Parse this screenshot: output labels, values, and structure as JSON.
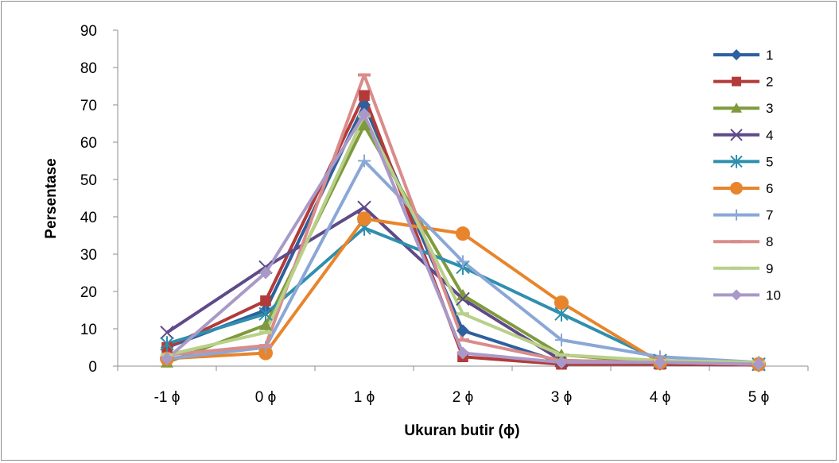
{
  "chart_data": {
    "type": "line",
    "title": "",
    "xlabel": "Ukuran butir (ϕ)",
    "ylabel": "Persentase",
    "categories": [
      "-1 ϕ",
      "0 ϕ",
      "1 ϕ",
      "2 ϕ",
      "3 ϕ",
      "4 ϕ",
      "5 ϕ"
    ],
    "ylim": [
      0,
      90
    ],
    "yticks": [
      0,
      10,
      20,
      30,
      40,
      50,
      60,
      70,
      80,
      90
    ],
    "grid": false,
    "legend_position": "right",
    "series": [
      {
        "name": "1",
        "color": "#2e5f9e",
        "marker": "diamond",
        "values": [
          5,
          15,
          70,
          9.5,
          1,
          0.5,
          0.3
        ]
      },
      {
        "name": "2",
        "color": "#b23b39",
        "marker": "square",
        "values": [
          5,
          17.5,
          72.5,
          2.5,
          0.5,
          0.5,
          0.3
        ]
      },
      {
        "name": "3",
        "color": "#7f9a3c",
        "marker": "triangle",
        "values": [
          1,
          11,
          64.5,
          19,
          3,
          1,
          0.5
        ]
      },
      {
        "name": "4",
        "color": "#5f4a88",
        "marker": "x",
        "values": [
          9,
          26.5,
          42.5,
          18,
          1.5,
          1,
          0.5
        ]
      },
      {
        "name": "5",
        "color": "#2f8fad",
        "marker": "star",
        "values": [
          6,
          14,
          37,
          26.5,
          14,
          1.5,
          0.5
        ]
      },
      {
        "name": "6",
        "color": "#e8852c",
        "marker": "circle",
        "values": [
          2,
          3.5,
          39.5,
          35.5,
          17,
          1,
          0.5
        ]
      },
      {
        "name": "7",
        "color": "#8aa7d6",
        "marker": "plus",
        "values": [
          2,
          5,
          55,
          28,
          7,
          2.5,
          1
        ]
      },
      {
        "name": "8",
        "color": "#d98c8a",
        "marker": "dash",
        "values": [
          3,
          5.5,
          78,
          7,
          1.5,
          1,
          0.5
        ]
      },
      {
        "name": "9",
        "color": "#b8d08a",
        "marker": "dash",
        "values": [
          3,
          9,
          67,
          14,
          3,
          1.5,
          1
        ]
      },
      {
        "name": "10",
        "color": "#a999c9",
        "marker": "diamond",
        "values": [
          2,
          25,
          67.5,
          3.5,
          1,
          1,
          0.5
        ]
      }
    ]
  }
}
